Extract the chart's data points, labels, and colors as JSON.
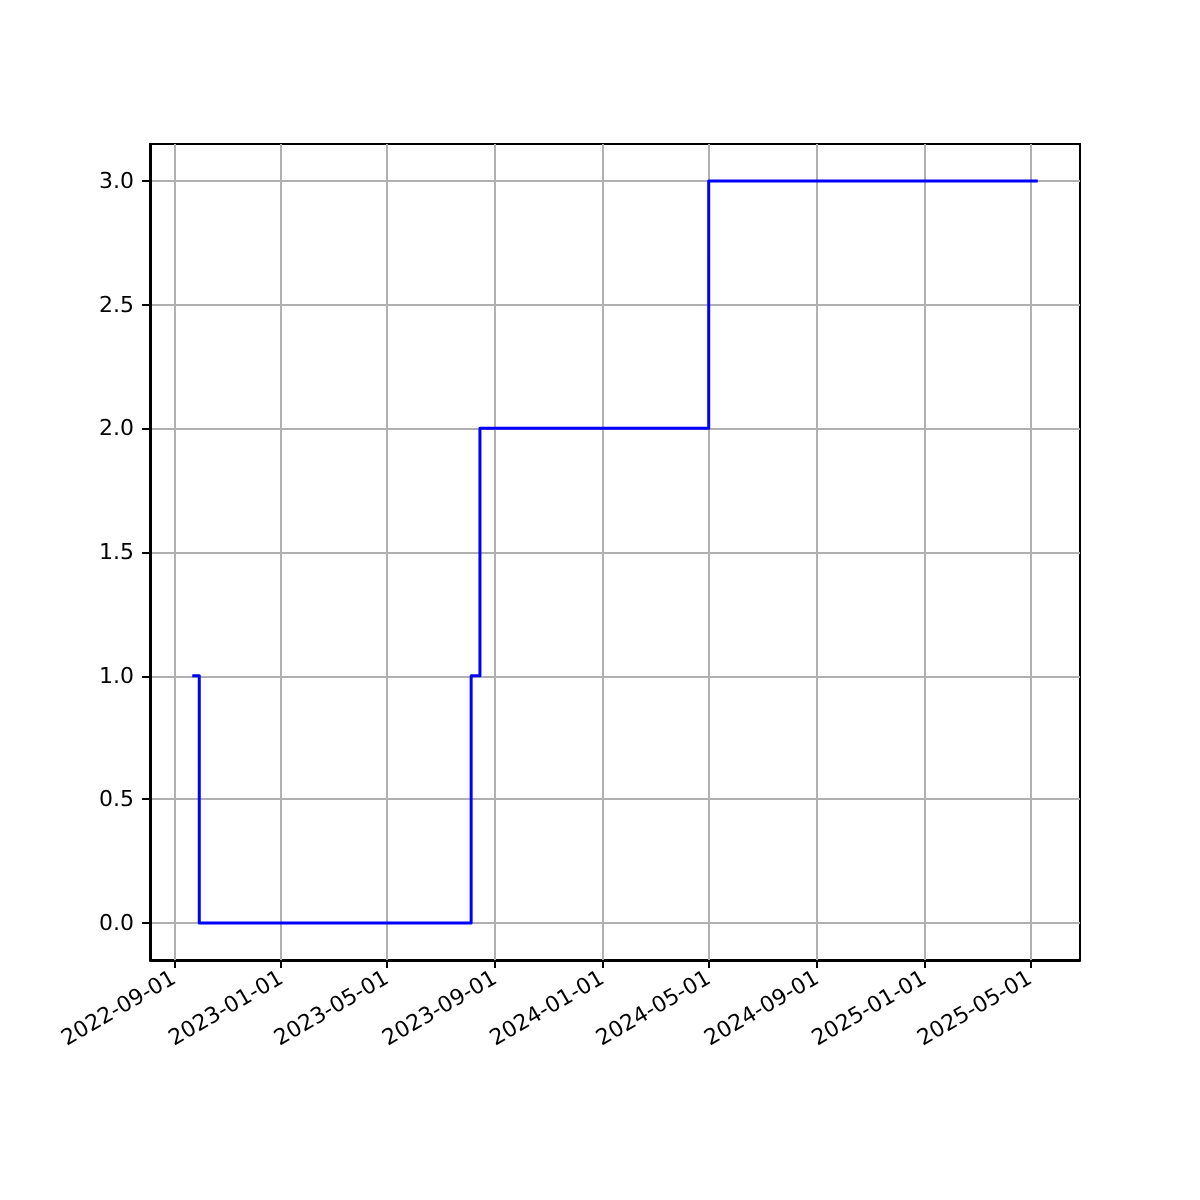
{
  "chart_data": {
    "type": "step",
    "x": [
      "2022-09-22",
      "2022-09-30",
      "2023-08-05",
      "2023-08-15",
      "2024-05-01",
      "2025-05-10"
    ],
    "series": [
      {
        "color": "#0000ff",
        "values": [
          1,
          0,
          1,
          2,
          3,
          3
        ]
      }
    ],
    "xlim": [
      "2022-08-05",
      "2025-06-27"
    ],
    "xticks": [
      "2022-09-01",
      "2023-01-01",
      "2023-05-01",
      "2023-09-01",
      "2024-01-01",
      "2024-05-01",
      "2024-09-01",
      "2025-01-01",
      "2025-05-01"
    ],
    "ylim": [
      -0.15,
      3.15
    ],
    "yticks": [
      {
        "value": 0,
        "label": "0.0"
      },
      0.5,
      {
        "value": 1,
        "label": "1.0"
      },
      1.5,
      {
        "value": 2,
        "label": "2.0"
      },
      2.5,
      {
        "value": 3,
        "label": "3.0"
      }
    ],
    "grid": true
  }
}
